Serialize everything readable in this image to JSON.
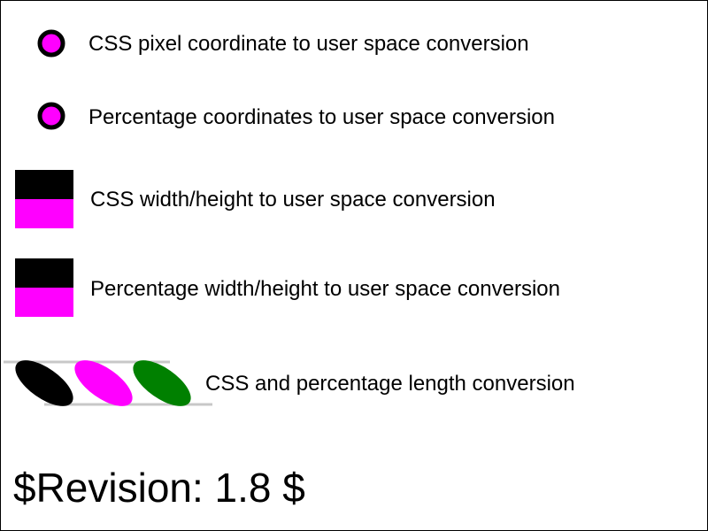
{
  "colors": {
    "magenta": "#ff00ff",
    "black": "#000000",
    "green": "#008000",
    "gray": "#c8c8c8",
    "border": "#000000",
    "background": "#ffffff"
  },
  "rows": [
    {
      "label": "CSS pixel coordinate to user space conversion",
      "marker": "circle"
    },
    {
      "label": "Percentage coordinates to user space conversion",
      "marker": "circle"
    },
    {
      "label": "CSS width/height to user space conversion",
      "marker": "split-rect"
    },
    {
      "label": "Percentage width/height to user space conversion",
      "marker": "split-rect"
    },
    {
      "label": "CSS and percentage length conversion",
      "marker": "ellipses"
    }
  ],
  "revision": "$Revision: 1.8 $"
}
